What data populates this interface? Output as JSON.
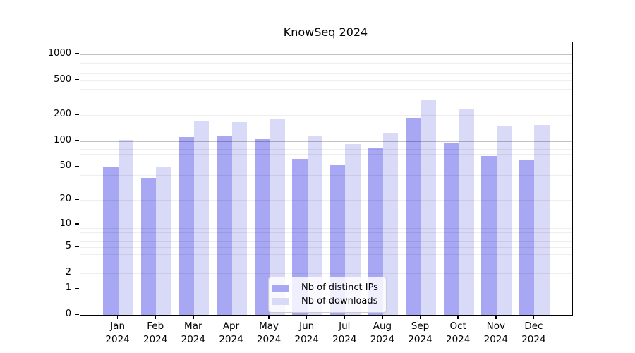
{
  "chart_data": {
    "type": "bar",
    "title": "KnowSeq 2024",
    "categories": [
      "Jan",
      "Feb",
      "Mar",
      "Apr",
      "May",
      "Jun",
      "Jul",
      "Aug",
      "Sep",
      "Oct",
      "Nov",
      "Dec"
    ],
    "category_year": "2024",
    "series": [
      {
        "name": "Nb of distinct IPs",
        "color": "#a7a7f4",
        "values": [
          49,
          37,
          110,
          113,
          105,
          62,
          52,
          84,
          184,
          94,
          67,
          61
        ]
      },
      {
        "name": "Nb of downloads",
        "color": "#d9d9f8",
        "values": [
          103,
          49,
          167,
          165,
          179,
          115,
          92,
          125,
          295,
          230,
          150,
          154
        ]
      }
    ],
    "y_axis": {
      "scale": "log1p",
      "tick_values": [
        0,
        1,
        2,
        5,
        10,
        20,
        50,
        100,
        200,
        500,
        1000
      ],
      "tick_labels": [
        "0",
        "1",
        "2",
        "5",
        "10",
        "20",
        "50",
        "100",
        "200",
        "500",
        "1000"
      ],
      "major_gridlines": [
        1,
        10,
        100,
        1000
      ],
      "ylim": [
        0,
        1375
      ],
      "grid": "on"
    },
    "legend": {
      "position": "bottom-center",
      "entries": [
        "Nb of distinct IPs",
        "Nb of downloads"
      ]
    }
  }
}
